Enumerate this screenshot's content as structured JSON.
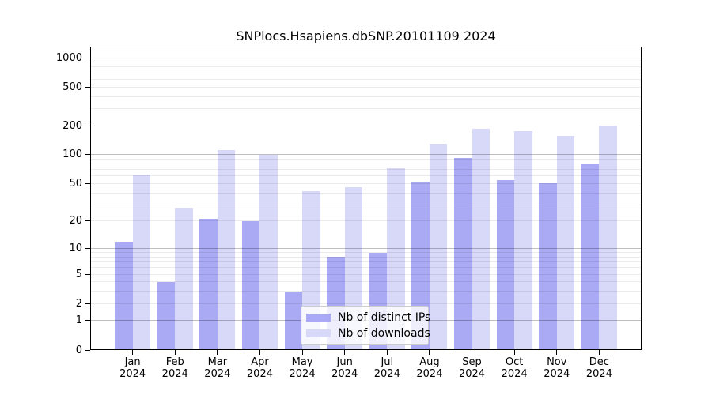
{
  "chart_data": {
    "type": "bar",
    "title": "SNPlocs.Hsapiens.dbSNP.20101109 2024",
    "categories": [
      "Jan",
      "Feb",
      "Mar",
      "Apr",
      "May",
      "Jun",
      "Jul",
      "Aug",
      "Sep",
      "Oct",
      "Nov",
      "Dec"
    ],
    "year_label": "2024",
    "series": [
      {
        "name": "Nb of distinct IPs",
        "color": "#a9a9f4",
        "values": [
          12,
          4,
          21,
          20,
          3,
          8,
          9,
          52,
          93,
          54,
          50,
          79
        ]
      },
      {
        "name": "Nb of downloads",
        "color": "#d8d8f8",
        "values": [
          62,
          28,
          112,
          100,
          42,
          46,
          73,
          130,
          186,
          177,
          156,
          200
        ]
      }
    ],
    "yscale": "log1p",
    "ylim": [
      0,
      1300
    ],
    "yticks": [
      0,
      1,
      2,
      5,
      10,
      20,
      50,
      100,
      200,
      500,
      1000
    ],
    "grid": {
      "major_values": [
        1,
        10,
        100,
        1000
      ],
      "minor_values": [
        2,
        3,
        4,
        5,
        6,
        7,
        8,
        9,
        20,
        30,
        40,
        50,
        60,
        70,
        80,
        90,
        200,
        300,
        400,
        500,
        600,
        700,
        800,
        900
      ],
      "major_color": "rgba(0,0,0,0.25)",
      "minor_color": "rgba(0,0,0,0.08)"
    },
    "legend": {
      "position": "lower center"
    }
  }
}
